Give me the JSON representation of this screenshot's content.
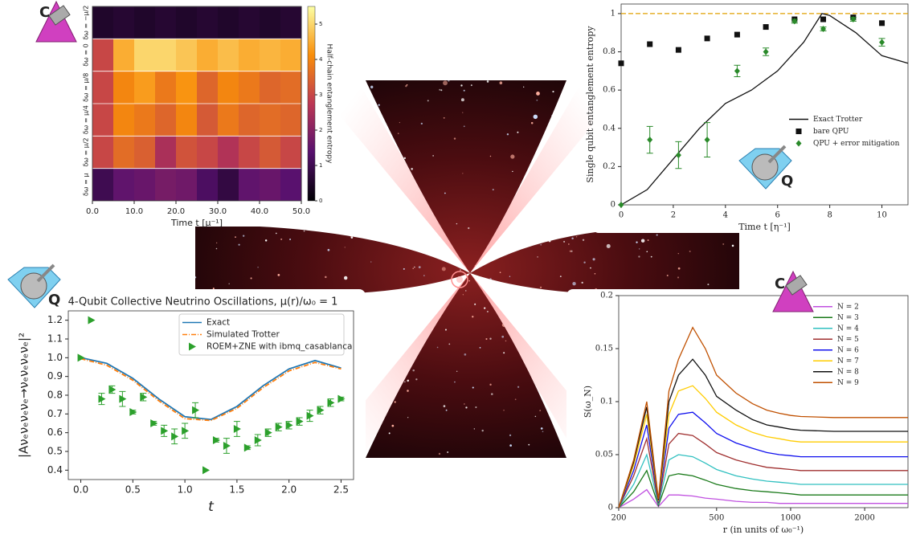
{
  "badges": [
    "C",
    "Q",
    "Q",
    "C"
  ],
  "chart_data": [
    {
      "type": "heatmap",
      "xlabel": "Time t [μ⁻¹]",
      "colorbar_label": "Half-chain entanglement entropy",
      "rows": [
        "δω = −μ/2",
        "δω = 0",
        "δω = μ/8",
        "δω = μ/4",
        "δω = μ/2",
        "δω = μ"
      ],
      "xbins": [
        0,
        5,
        10,
        15,
        20,
        25,
        30,
        35,
        40,
        45,
        50
      ],
      "values": [
        [
          0.5,
          0.6,
          0.5,
          0.6,
          0.5,
          0.6,
          0.5,
          0.6,
          0.5,
          0.6
        ],
        [
          3,
          4.5,
          5,
          5,
          4.8,
          4.5,
          4.7,
          4.5,
          4.6,
          4.5
        ],
        [
          3,
          4,
          4.3,
          3.8,
          4.2,
          3.5,
          4,
          3.8,
          3.5,
          3.6
        ],
        [
          3,
          4,
          3.8,
          3.5,
          4,
          3.3,
          3.8,
          3.5,
          3.6,
          3.5
        ],
        [
          3,
          3.6,
          3.4,
          2.5,
          3.2,
          3,
          2.6,
          3,
          3.3,
          3
        ],
        [
          1,
          1.5,
          1.6,
          1.8,
          1.7,
          1.2,
          0.8,
          1.5,
          1.6,
          1.4
        ]
      ],
      "xlim": [
        0,
        50
      ],
      "xticks": [
        {
          "value": 0,
          "label": "0.0"
        },
        {
          "value": 10,
          "label": "10.0"
        },
        {
          "value": 20,
          "label": "20.0"
        },
        {
          "value": 30,
          "label": "30.0"
        },
        {
          "value": 40,
          "label": "40.0"
        },
        {
          "value": 50,
          "label": "50.0"
        }
      ],
      "zlim": [
        0,
        5.5
      ],
      "zticks": [
        0,
        1,
        2,
        3,
        4,
        5
      ],
      "colormap": "inferno"
    },
    {
      "type": "line",
      "xlabel": "Time t [η⁻¹]",
      "ylabel": "Single qubit entanglement entropy",
      "serif": true,
      "xlim": [
        0,
        11
      ],
      "ylim": [
        0,
        1.05
      ],
      "xticks": [
        0,
        2,
        4,
        6,
        8,
        10
      ],
      "yticks": [
        0,
        0.2,
        0.4,
        0.6,
        0.8,
        1
      ],
      "hline": 1,
      "hline_color": "#e0a000",
      "legend": "lower right",
      "series": [
        {
          "name": "Exact Trotter",
          "kind": "line",
          "color": "#111111",
          "x": [
            0,
            1,
            2,
            3,
            4,
            5,
            6,
            7,
            7.7,
            8,
            9,
            10,
            11
          ],
          "values": [
            0,
            0.08,
            0.24,
            0.4,
            0.53,
            0.6,
            0.7,
            0.85,
            1.0,
            0.99,
            0.9,
            0.78,
            0.74
          ]
        },
        {
          "name": "bare QPU",
          "kind": "points",
          "marker": "square",
          "color": "#111111",
          "x": [
            0,
            1.1,
            2.2,
            3.3,
            4.45,
            5.55,
            6.65,
            7.75,
            8.9,
            10
          ],
          "values": [
            0.74,
            0.84,
            0.81,
            0.87,
            0.89,
            0.93,
            0.97,
            0.97,
            0.98,
            0.95
          ]
        },
        {
          "name": "QPU + error mitigation",
          "kind": "points",
          "marker": "diamond",
          "color": "#2a8a2a",
          "x": [
            0,
            1.1,
            2.2,
            3.3,
            4.45,
            5.55,
            6.65,
            7.75,
            8.9,
            10
          ],
          "values": [
            0,
            0.34,
            0.26,
            0.34,
            0.7,
            0.8,
            0.96,
            0.92,
            0.97,
            0.85
          ],
          "errors": [
            0,
            0.07,
            0.07,
            0.09,
            0.03,
            0.02,
            0.01,
            0.01,
            0.01,
            0.02
          ]
        }
      ]
    },
    {
      "type": "line",
      "title": "4-Qubit Collective Neutrino Oscillations, μ(r)/ω₀ = 1",
      "xlabel": "t",
      "ylabel": "|Aνₑνₑνₑνₑ→νₑνₑνₑνₑ|²",
      "xlim": [
        -0.12,
        2.62
      ],
      "ylim": [
        0.35,
        1.25
      ],
      "xticks": [
        {
          "value": 0,
          "label": "0.0"
        },
        0.5,
        {
          "value": 1,
          "label": "1.0"
        },
        1.5,
        {
          "value": 2,
          "label": "2.0"
        },
        2.5
      ],
      "yticks": [
        0.4,
        0.5,
        0.6,
        0.7,
        0.8,
        0.9,
        {
          "value": 1,
          "label": "1.0"
        },
        1.1,
        1.2
      ],
      "legend": "upper right",
      "series": [
        {
          "name": "Exact",
          "kind": "line",
          "color": "#1f77b4",
          "x": [
            0,
            0.25,
            0.5,
            0.75,
            1,
            1.25,
            1.5,
            1.75,
            2,
            2.25,
            2.5
          ],
          "values": [
            1.0,
            0.97,
            0.89,
            0.78,
            0.685,
            0.67,
            0.74,
            0.85,
            0.94,
            0.985,
            0.945
          ]
        },
        {
          "name": "Simulated Trotter",
          "kind": "line",
          "dash": "6 2 1 2",
          "color": "#ff7f0e",
          "x": [
            0,
            0.25,
            0.5,
            0.75,
            1,
            1.25,
            1.5,
            1.75,
            2,
            2.25,
            2.5
          ],
          "values": [
            0.995,
            0.96,
            0.88,
            0.77,
            0.675,
            0.665,
            0.73,
            0.84,
            0.93,
            0.975,
            0.94
          ]
        },
        {
          "name": "ROEM+ZNE with ibmq_casablanca",
          "kind": "points",
          "marker": "triangle",
          "color": "#2ca02c",
          "x": [
            0,
            0.1,
            0.2,
            0.3,
            0.4,
            0.5,
            0.6,
            0.7,
            0.8,
            0.9,
            1.0,
            1.1,
            1.2,
            1.3,
            1.4,
            1.5,
            1.6,
            1.7,
            1.8,
            1.9,
            2.0,
            2.1,
            2.2,
            2.3,
            2.4,
            2.5
          ],
          "values": [
            1.0,
            1.2,
            0.78,
            0.83,
            0.78,
            0.71,
            0.79,
            0.65,
            0.61,
            0.58,
            0.61,
            0.72,
            0.4,
            0.56,
            0.53,
            0.62,
            0.52,
            0.56,
            0.6,
            0.63,
            0.64,
            0.66,
            0.69,
            0.72,
            0.76,
            0.78
          ],
          "errors": [
            0,
            0,
            0.03,
            0.02,
            0.04,
            0.01,
            0.02,
            0.01,
            0.03,
            0.04,
            0.04,
            0.04,
            0,
            0.01,
            0.04,
            0.04,
            0.01,
            0.03,
            0.02,
            0.02,
            0.02,
            0.02,
            0.03,
            0.02,
            0.02,
            0.01
          ]
        }
      ]
    },
    {
      "type": "line",
      "xlabel": "r (in units of ω₀⁻¹)",
      "ylabel": "S(ω_N)",
      "serif": true,
      "xlog": true,
      "xlim": [
        200,
        3000
      ],
      "ylim": [
        0,
        0.2
      ],
      "xticks": [
        200,
        500,
        1000,
        2000
      ],
      "yticks": [
        0,
        0.05,
        0.1,
        0.15,
        0.2
      ],
      "legend": "upper right",
      "x": [
        200,
        230,
        260,
        290,
        320,
        350,
        400,
        450,
        500,
        600,
        700,
        800,
        900,
        1000,
        1100,
        1500,
        2000,
        3000
      ],
      "series": [
        {
          "name": "N = 2",
          "kind": "line",
          "color": "#c050e0",
          "values": [
            0,
            0.008,
            0.017,
            0.001,
            0.012,
            0.012,
            0.011,
            0.009,
            0.008,
            0.006,
            0.005,
            0.005,
            0.004,
            0.004,
            0.004,
            0.004,
            0.004,
            0.004
          ]
        },
        {
          "name": "N = 3",
          "kind": "line",
          "color": "#1a7a1a",
          "values": [
            0,
            0.015,
            0.035,
            0.002,
            0.03,
            0.032,
            0.03,
            0.026,
            0.022,
            0.018,
            0.016,
            0.015,
            0.014,
            0.013,
            0.012,
            0.012,
            0.012,
            0.012
          ]
        },
        {
          "name": "N = 4",
          "kind": "line",
          "color": "#30c0c0",
          "values": [
            0,
            0.022,
            0.05,
            0.003,
            0.045,
            0.05,
            0.048,
            0.042,
            0.036,
            0.03,
            0.027,
            0.025,
            0.024,
            0.023,
            0.022,
            0.022,
            0.022,
            0.022
          ]
        },
        {
          "name": "N = 5",
          "kind": "line",
          "color": "#a03030",
          "values": [
            0,
            0.03,
            0.065,
            0.004,
            0.06,
            0.07,
            0.068,
            0.06,
            0.052,
            0.045,
            0.041,
            0.038,
            0.037,
            0.036,
            0.035,
            0.035,
            0.035,
            0.035
          ]
        },
        {
          "name": "N = 6",
          "kind": "line",
          "color": "#1010ee",
          "values": [
            0,
            0.035,
            0.078,
            0.005,
            0.075,
            0.088,
            0.09,
            0.08,
            0.07,
            0.061,
            0.056,
            0.052,
            0.05,
            0.049,
            0.048,
            0.048,
            0.048,
            0.048
          ]
        },
        {
          "name": "N = 7",
          "kind": "line",
          "color": "#ffcc00",
          "values": [
            0,
            0.04,
            0.088,
            0.006,
            0.088,
            0.11,
            0.115,
            0.103,
            0.09,
            0.078,
            0.071,
            0.067,
            0.065,
            0.063,
            0.062,
            0.062,
            0.062,
            0.062
          ]
        },
        {
          "name": "N = 8",
          "kind": "line",
          "color": "#111111",
          "values": [
            0,
            0.043,
            0.095,
            0.007,
            0.1,
            0.125,
            0.14,
            0.125,
            0.105,
            0.092,
            0.083,
            0.078,
            0.076,
            0.074,
            0.073,
            0.072,
            0.072,
            0.072
          ]
        },
        {
          "name": "N = 9",
          "kind": "line",
          "color": "#c05000",
          "values": [
            0,
            0.045,
            0.1,
            0.008,
            0.11,
            0.14,
            0.17,
            0.15,
            0.125,
            0.108,
            0.098,
            0.092,
            0.089,
            0.087,
            0.086,
            0.085,
            0.085,
            0.085
          ]
        }
      ]
    }
  ]
}
